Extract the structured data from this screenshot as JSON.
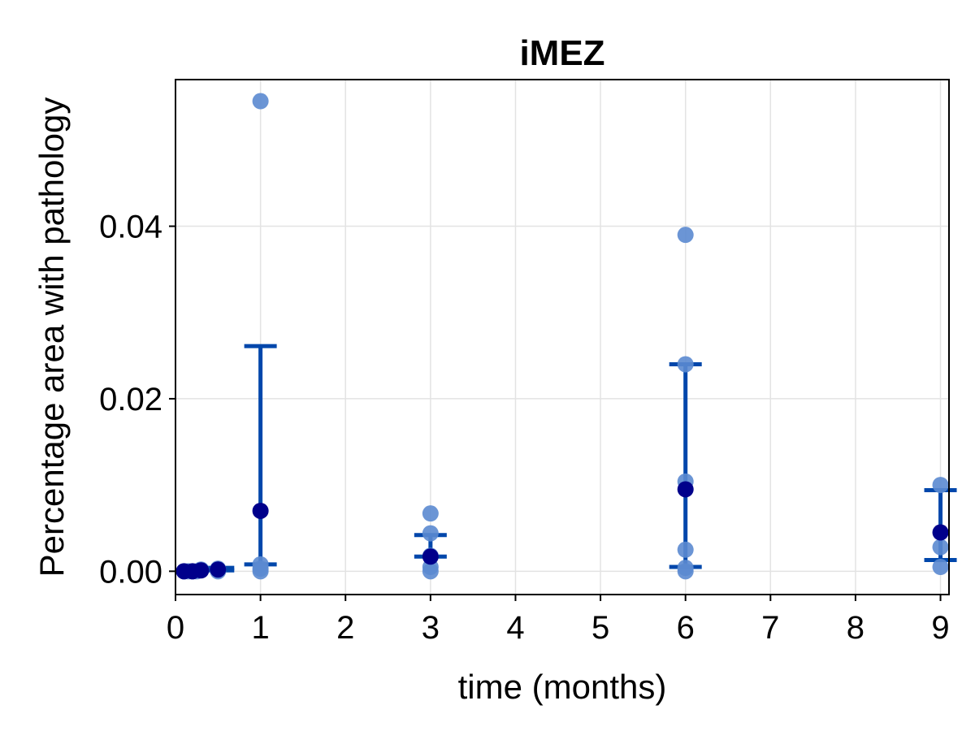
{
  "chart_data": {
    "type": "scatter",
    "title": "iMEZ",
    "xlabel": "time (months)",
    "ylabel": "Percentage area with pathology",
    "xlim": [
      0,
      9.1
    ],
    "ylim": [
      -0.0027,
      0.057
    ],
    "xticks": [
      0,
      1,
      2,
      3,
      4,
      5,
      6,
      7,
      8,
      9
    ],
    "xtick_labels": [
      "0",
      "1",
      "2",
      "3",
      "4",
      "5",
      "6",
      "7",
      "8",
      "9"
    ],
    "yticks": [
      0.0,
      0.02,
      0.04
    ],
    "ytick_labels": [
      "0.00",
      "0.02",
      "0.04"
    ],
    "grid": true,
    "colors": {
      "points": "#5b8ad0",
      "mean": "#00008b",
      "errorbar": "#0047ab"
    },
    "points": [
      {
        "x": 0.1,
        "y": 0.0
      },
      {
        "x": 0.15,
        "y": 0.0
      },
      {
        "x": 0.2,
        "y": 0.0
      },
      {
        "x": 0.25,
        "y": 0.0
      },
      {
        "x": 0.3,
        "y": 0.0002
      },
      {
        "x": 0.5,
        "y": 0.0003
      },
      {
        "x": 0.5,
        "y": 0.0
      },
      {
        "x": 1,
        "y": 0.0545
      },
      {
        "x": 1,
        "y": 0.0008
      },
      {
        "x": 1,
        "y": 0.0003
      },
      {
        "x": 1,
        "y": 0.0
      },
      {
        "x": 3,
        "y": 0.0067
      },
      {
        "x": 3,
        "y": 0.0044
      },
      {
        "x": 3,
        "y": 0.0018
      },
      {
        "x": 3,
        "y": 0.0005
      },
      {
        "x": 3,
        "y": 0.0
      },
      {
        "x": 6,
        "y": 0.039
      },
      {
        "x": 6,
        "y": 0.024
      },
      {
        "x": 6,
        "y": 0.0104
      },
      {
        "x": 6,
        "y": 0.0025
      },
      {
        "x": 6,
        "y": 0.0004
      },
      {
        "x": 6,
        "y": 0.0
      },
      {
        "x": 9,
        "y": 0.01
      },
      {
        "x": 9,
        "y": 0.0028
      },
      {
        "x": 9,
        "y": 0.0005
      }
    ],
    "means": [
      {
        "x": 0.1,
        "y": 0.0
      },
      {
        "x": 0.2,
        "y": 0.0
      },
      {
        "x": 0.3,
        "y": 0.0001
      },
      {
        "x": 0.5,
        "y": 0.0002
      },
      {
        "x": 1,
        "y": 0.007
      },
      {
        "x": 3,
        "y": 0.0017
      },
      {
        "x": 6,
        "y": 0.0095
      },
      {
        "x": 9,
        "y": 0.0045
      }
    ],
    "errorbars": [
      {
        "x": 0.5,
        "low": 0.0001,
        "high": 0.0004
      },
      {
        "x": 1,
        "low": 0.0008,
        "high": 0.0261
      },
      {
        "x": 3,
        "low": 0.0017,
        "high": 0.0042
      },
      {
        "x": 6,
        "low": 0.0005,
        "high": 0.024
      },
      {
        "x": 9,
        "low": 0.0013,
        "high": 0.0094
      }
    ]
  }
}
